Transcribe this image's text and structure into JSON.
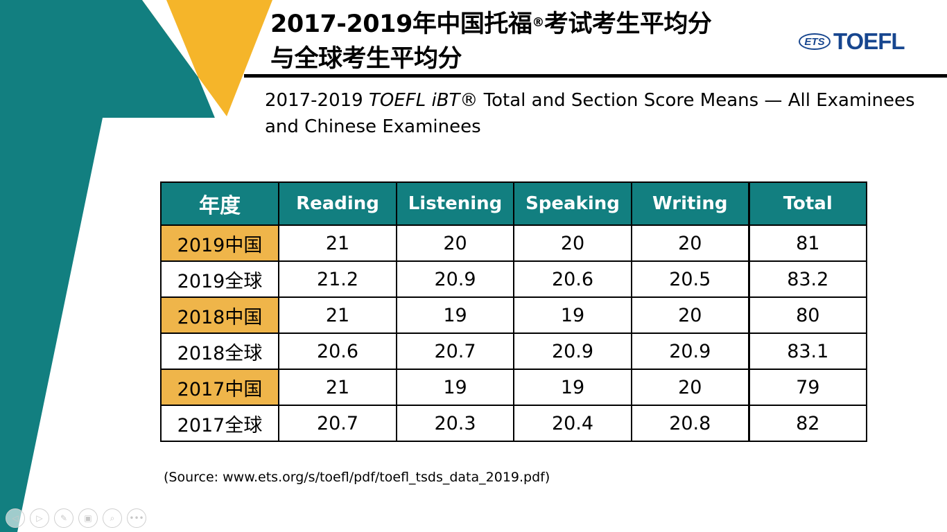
{
  "slide": {
    "title_line1": "2017-2019年中国托福",
    "title_reg": "®",
    "title_line1_end": "考试考生平均分",
    "title_line2": "与全球考生平均分",
    "logo": {
      "badge": "ETS",
      "text": "TOEFL",
      "color": "#17468f"
    },
    "subtitle_prefix": "2017-2019 ",
    "subtitle_italic": "TOEFL iBT®",
    "subtitle_rest": " Total and Section Score Means — All Examinees and Chinese Examinees",
    "source": "(Source: www.ets.org/s/toefl/pdf/toefl_tsds_data_2019.pdf)",
    "colors": {
      "teal": "#127f80",
      "yellow": "#f5b52a",
      "row_highlight": "#efb54a"
    }
  },
  "table": {
    "headers": [
      "年度",
      "Reading",
      "Listening",
      "Speaking",
      "Writing",
      "Total"
    ],
    "rows": [
      {
        "label": "2019中国",
        "highlight": true,
        "values": [
          "21",
          "20",
          "20",
          "20",
          "81"
        ]
      },
      {
        "label": "2019全球",
        "highlight": false,
        "values": [
          "21.2",
          "20.9",
          "20.6",
          "20.5",
          "83.2"
        ]
      },
      {
        "label": "2018中国",
        "highlight": true,
        "values": [
          "21",
          "19",
          "19",
          "20",
          "80"
        ]
      },
      {
        "label": "2018全球",
        "highlight": false,
        "values": [
          "20.6",
          "20.7",
          "20.9",
          "20.9",
          "83.1"
        ]
      },
      {
        "label": "2017中国",
        "highlight": true,
        "values": [
          "21",
          "19",
          "19",
          "20",
          "79"
        ]
      },
      {
        "label": "2017全球",
        "highlight": false,
        "values": [
          "20.7",
          "20.3",
          "20.4",
          "20.8",
          "82"
        ]
      }
    ]
  },
  "toolbar": {
    "buttons": [
      {
        "name": "previous-slide-button",
        "icon": "arrow-left-icon",
        "glyph": "◁"
      },
      {
        "name": "next-slide-button",
        "icon": "arrow-right-icon",
        "glyph": "▷"
      },
      {
        "name": "pen-tool-button",
        "icon": "pen-icon",
        "glyph": "✎"
      },
      {
        "name": "slide-sorter-button",
        "icon": "slides-icon",
        "glyph": "▣"
      },
      {
        "name": "zoom-button",
        "icon": "magnifier-icon",
        "glyph": "⌕"
      },
      {
        "name": "more-options-button",
        "icon": "more-icon",
        "glyph": "•••"
      }
    ]
  }
}
